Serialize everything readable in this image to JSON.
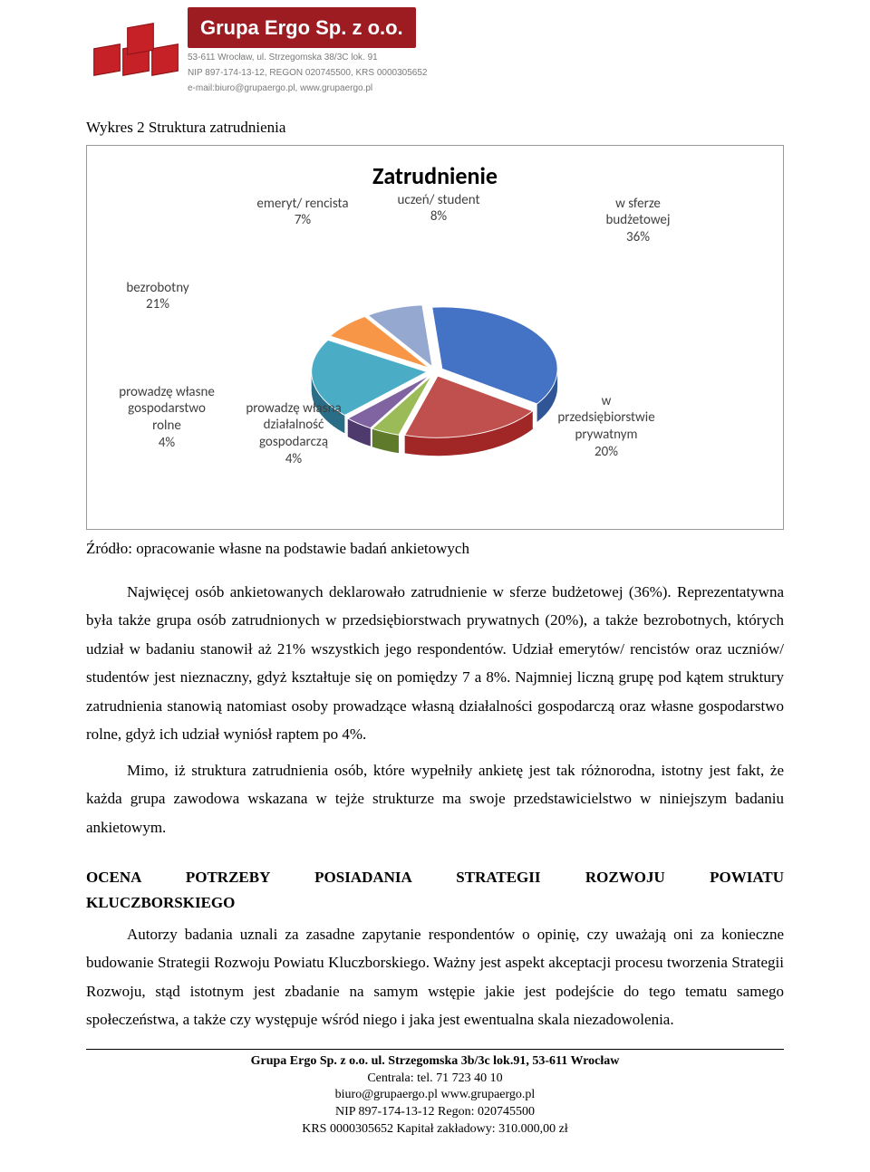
{
  "header": {
    "company_name": "Grupa Ergo Sp. z o.o.",
    "address_line": "53-611 Wrocław, ul. Strzegomska 38/3C lok. 91",
    "contact_line": "NIP 897-174-13-12, REGON 020745500, KRS 0000305652",
    "email_line": "e-mail:biuro@grupaergo.pl, www.grupaergo.pl"
  },
  "caption": "Wykres 2 Struktura zatrudnienia",
  "chart": {
    "title": "Zatrudnienie",
    "type": "pie-3d-exploded",
    "background_color": "#ffffff",
    "border_color": "#9a9a9a",
    "title_fontsize": 26,
    "label_fontsize": 15,
    "label_color": "#404040",
    "slices": [
      {
        "label": "w sferze budżetowej",
        "pct": 36,
        "color": "#2f5597",
        "top": "#4472c4",
        "label_text": "w sferze\nbudżetowej\n36%"
      },
      {
        "label": "w przedsiębiorstwie prywatnym",
        "pct": 20,
        "color": "#a12626",
        "top": "#c0504d",
        "label_text": "w\nprzedsiębiorstwie\nprywatnym\n20%"
      },
      {
        "label": "prowadzę własną działalność gospodarczą",
        "pct": 4,
        "color": "#5f7a2b",
        "top": "#9bbb59",
        "label_text": "prowadzę własną\ndziałalność\ngospodarczą\n4%"
      },
      {
        "label": "prowadzę własne gospodarstwo rolne",
        "pct": 4,
        "color": "#4e3a6d",
        "top": "#8064a2",
        "label_text": "prowadzę własne\ngospodarstwo\nrolne\n4%"
      },
      {
        "label": "bezrobotny",
        "pct": 21,
        "color": "#2a6d86",
        "top": "#4bacc6",
        "label_text": "bezrobotny\n21%"
      },
      {
        "label": "emeryt/ rencista",
        "pct": 7,
        "color": "#b6651a",
        "top": "#f79646",
        "label_text": "emeryt/ rencista\n7%"
      },
      {
        "label": "uczeń/ student",
        "pct": 8,
        "color": "#6e81aa",
        "top": "#95a8d0",
        "label_text": "uczeń/ student\n8%"
      }
    ]
  },
  "source_note": "Źródło: opracowanie własne na podstawie badań ankietowych",
  "paragraphs": {
    "p1": "Najwięcej osób ankietowanych deklarowało zatrudnienie w sferze budżetowej (36%). Reprezentatywna była także grupa osób zatrudnionych w przedsiębiorstwach prywatnych (20%), a także bezrobotnych, których udział w badaniu stanowił aż 21% wszystkich jego respondentów. Udział emerytów/ rencistów oraz uczniów/ studentów jest nieznaczny, gdyż kształtuje się on pomiędzy 7 a 8%. Najmniej liczną grupę pod kątem struktury zatrudnienia stanowią natomiast osoby prowadzące własną działalności gospodarczą oraz własne gospodarstwo rolne, gdyż ich udział wyniósł raptem po 4%.",
    "p2": "Mimo, iż struktura zatrudnienia osób, które wypełniły ankietę jest tak różnorodna, istotny jest fakt, że każda grupa zawodowa wskazana w tejże strukturze ma swoje przedstawicielstwo w niniejszym badaniu ankietowym.",
    "section_line1": "OCENA POTRZEBY POSIADANIA STRATEGII ROZWOJU POWIATU",
    "section_line2": "KLUCZBORSKIEGO",
    "p3": "Autorzy badania uznali za zasadne zapytanie respondentów o opinię, czy uważają oni za konieczne budowanie Strategii Rozwoju Powiatu Kluczborskiego. Ważny jest aspekt akceptacji procesu tworzenia Strategii Rozwoju, stąd istotnym jest zbadanie na samym wstępie jakie jest podejście do tego tematu samego społeczeństwa, a także czy występuje wśród niego i jaka jest ewentualna skala niezadowolenia."
  },
  "footer": {
    "l1": "Grupa Ergo Sp. z o.o. ul. Strzegomska 3b/3c lok.91, 53-611 Wrocław",
    "l2": "Centrala: tel. 71 723 40 10",
    "l3": "biuro@grupaergo.pl www.grupaergo.pl",
    "l4": "NIP 897-174-13-12 Regon: 020745500",
    "l5": "KRS 0000305652 Kapitał zakładowy: 310.000,00 zł"
  }
}
